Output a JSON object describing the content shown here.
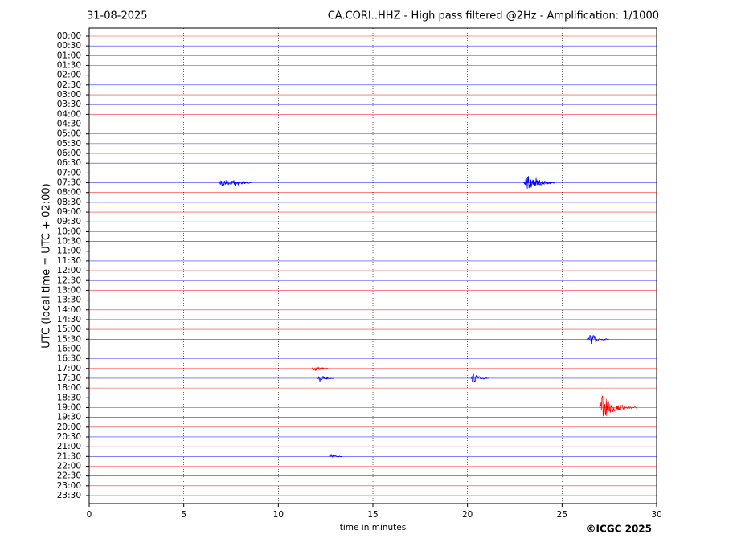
{
  "chart_data": {
    "type": "helicorder",
    "title_left": "31-08-2025",
    "title": "CA.CORI..HHZ - High pass filtered @2Hz - Amplification: 1/1000",
    "ylabel": "UTC (local time = UTC + 02:00)",
    "xlabel": "time in minutes",
    "copyright": "©ICGC 2025",
    "categories": [
      "00:00",
      "00:30",
      "01:00",
      "01:30",
      "02:00",
      "02:30",
      "03:00",
      "03:30",
      "04:00",
      "04:30",
      "05:00",
      "05:30",
      "06:00",
      "06:30",
      "07:00",
      "07:30",
      "08:00",
      "08:30",
      "09:00",
      "09:30",
      "10:00",
      "10:30",
      "11:00",
      "11:30",
      "12:00",
      "12:30",
      "13:00",
      "13:30",
      "14:00",
      "14:30",
      "15:00",
      "15:30",
      "16:00",
      "16:30",
      "17:00",
      "17:30",
      "18:00",
      "18:30",
      "19:00",
      "19:30",
      "20:00",
      "20:30",
      "21:00",
      "21:30",
      "22:00",
      "22:30",
      "23:00",
      "23:30"
    ],
    "colors": [
      "#ff0000",
      "#0000ff"
    ],
    "xlim": [
      0,
      30
    ],
    "xticks": [
      0,
      5,
      10,
      15,
      20,
      25,
      30
    ],
    "grid": true,
    "events": [
      {
        "row": 15,
        "x": 7.0,
        "amplitude": 0.3
      },
      {
        "row": 15,
        "x": 7.6,
        "amplitude": 0.3
      },
      {
        "row": 15,
        "x": 23.1,
        "amplitude": 0.45
      },
      {
        "row": 15,
        "x": 23.5,
        "amplitude": 0.35
      },
      {
        "row": 31,
        "x": 26.5,
        "amplitude": 0.3
      },
      {
        "row": 34,
        "x": 11.9,
        "amplitude": 0.2
      },
      {
        "row": 35,
        "x": 12.2,
        "amplitude": 0.2
      },
      {
        "row": 35,
        "x": 20.3,
        "amplitude": 0.25
      },
      {
        "row": 38,
        "x": 27.1,
        "amplitude": 0.65
      },
      {
        "row": 43,
        "x": 12.8,
        "amplitude": 0.15
      }
    ]
  }
}
